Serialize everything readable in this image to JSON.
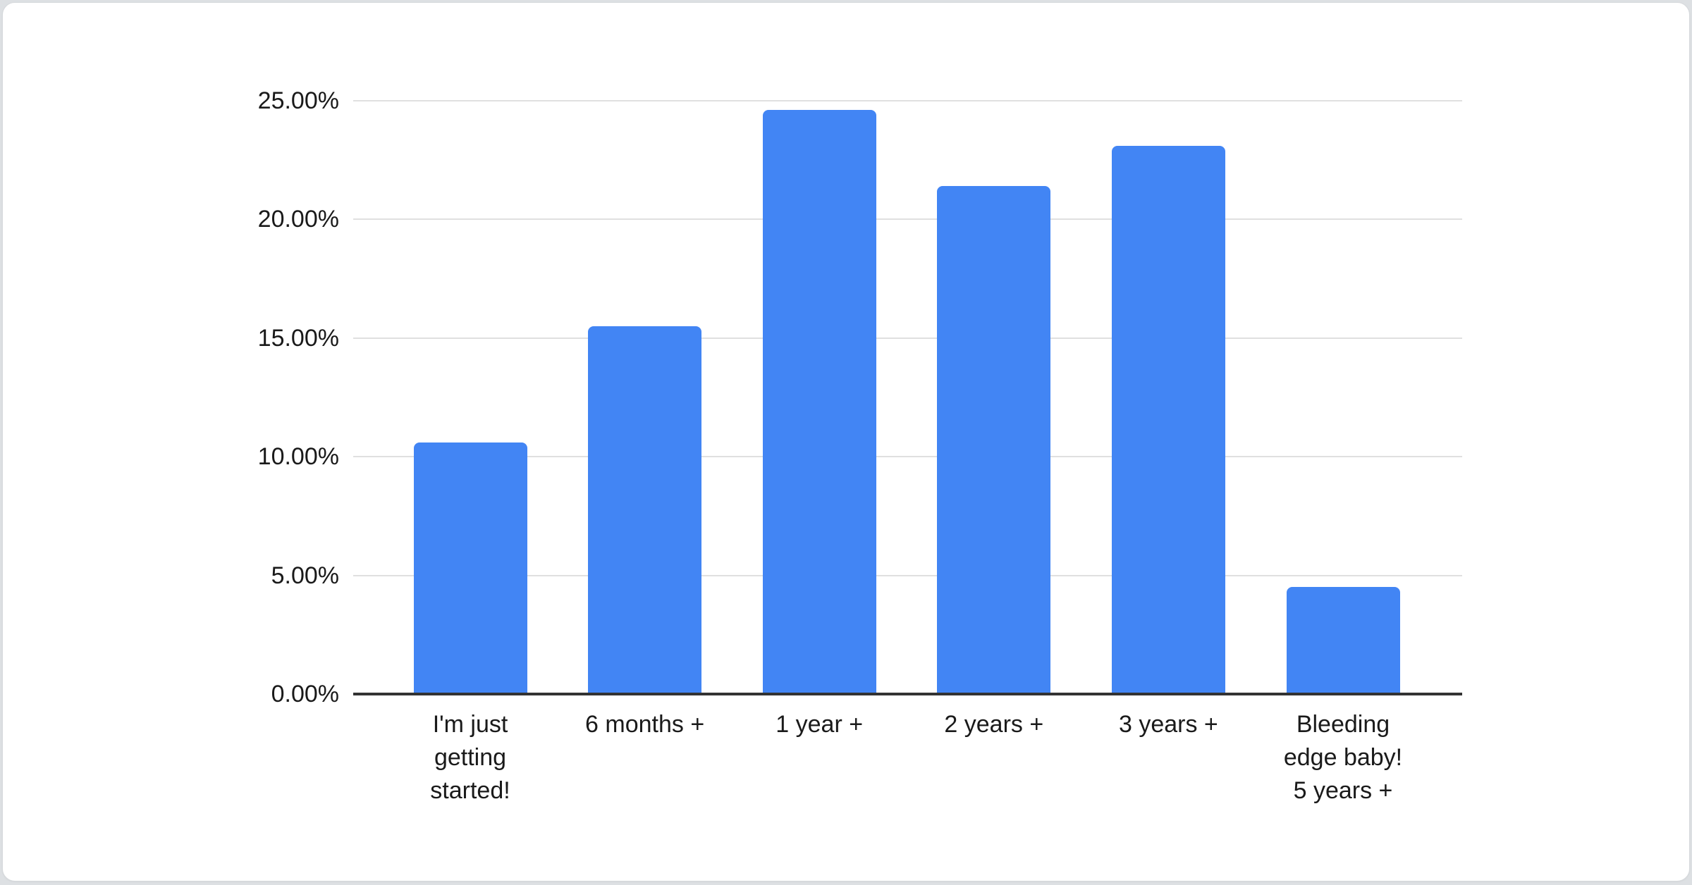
{
  "page": {
    "background_color": "#dde0e3",
    "card_background_color": "#ffffff",
    "card_border_color": "#d6d9dc"
  },
  "chart_data": {
    "type": "bar",
    "title": "",
    "xlabel": "",
    "ylabel": "",
    "categories": [
      "I'm just\ngetting\nstarted!",
      "6 months +",
      "1 year +",
      "2 years +",
      "3 years +",
      "Bleeding\nedge baby!\n5 years +"
    ],
    "values": [
      10.6,
      15.5,
      24.6,
      21.4,
      23.1,
      4.5
    ],
    "value_unit": "%",
    "y_tick_labels": [
      "0.00%",
      "5.00%",
      "10.00%",
      "15.00%",
      "20.00%",
      "25.00%"
    ],
    "y_tick_values": [
      0,
      5,
      10,
      15,
      20,
      25
    ],
    "ylim": [
      0,
      25
    ],
    "grid": true,
    "legend_position": "none",
    "bar_color": "#4285f4",
    "grid_color": "#e0e0e0",
    "axis_line_color": "#333333",
    "label_color": "#1a1a1a"
  }
}
